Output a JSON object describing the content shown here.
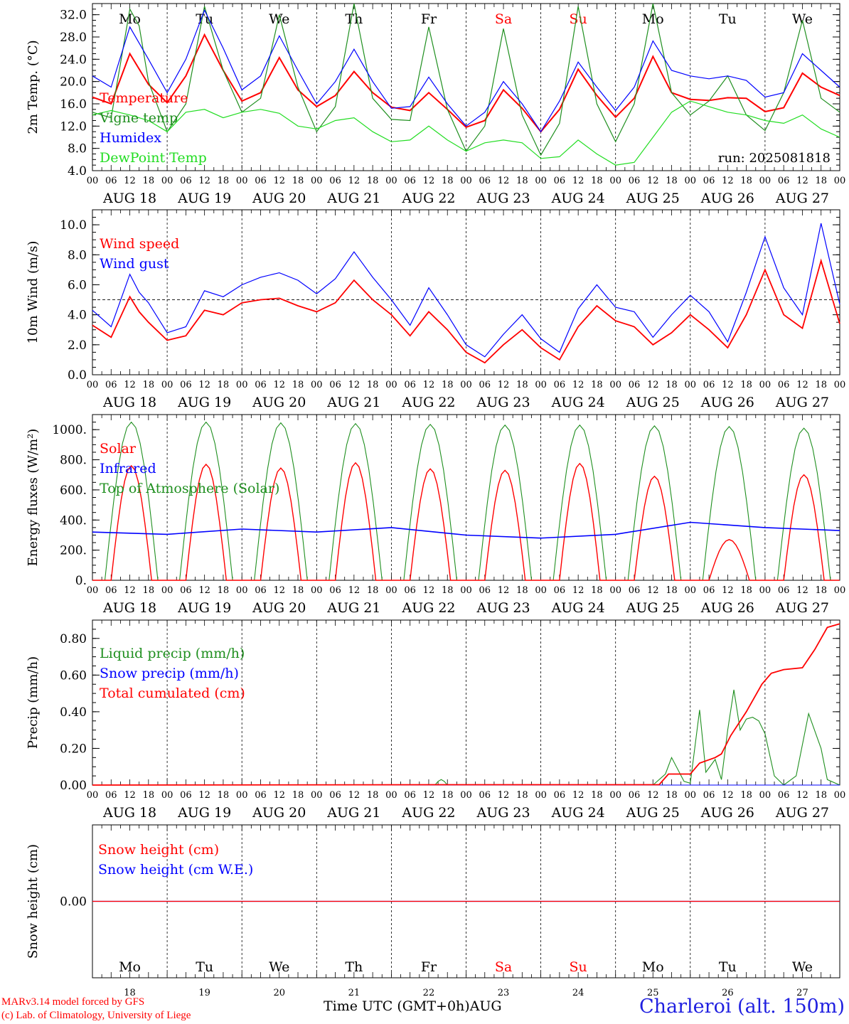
{
  "page": {
    "station": "Charleroi (alt. 150m)",
    "credits": [
      "MARv3.14 model forced by GFS",
      "(c) Lab. of Climatology, University of Liege"
    ],
    "x_axis_title": "Time UTC (GMT+0h)",
    "x_axis_month": "AUG",
    "run_label": "run: 2025081818"
  },
  "colors": {
    "red": "#ff0000",
    "green": "#1f8f1f",
    "blue": "#0000ff",
    "lightgreen": "#22dd22",
    "weekend": "#ff0000",
    "axis": "#000000"
  },
  "chart_data": [
    {
      "type": "line",
      "ylabel": "2m Temp. (°C)",
      "ylim": [
        4,
        34
      ],
      "yticks": [
        "32.0",
        "28.0",
        "24.0",
        "20.0",
        "16.0",
        "12.0",
        "8.0",
        "4.0"
      ],
      "x_unit": "hours since 2025-08-18 00 UTC",
      "days": [
        "AUG 18",
        "AUG 19",
        "AUG 20",
        "AUG 21",
        "AUG 22",
        "AUG 23",
        "AUG 24",
        "AUG 25",
        "AUG 26",
        "AUG 27"
      ],
      "weekdays": [
        "Mo",
        "Tu",
        "We",
        "Th",
        "Fr",
        "Sa",
        "Su",
        "Mo",
        "Tu",
        "We"
      ],
      "hour_ticks": [
        "00",
        "06",
        "12",
        "18"
      ],
      "series": [
        {
          "name": "Temperature",
          "color": "red",
          "x": [
            0,
            6,
            12,
            18,
            24,
            30,
            36,
            42,
            48,
            54,
            60,
            66,
            72,
            78,
            84,
            90,
            96,
            102,
            108,
            114,
            120,
            126,
            132,
            138,
            144,
            150,
            156,
            162,
            168,
            174,
            180,
            186,
            192,
            198,
            204,
            210,
            216,
            222,
            228,
            234,
            240
          ],
          "y": [
            17.2,
            16.0,
            25.0,
            19.5,
            16.2,
            21.0,
            28.4,
            22.0,
            16.5,
            18.0,
            24.3,
            18.5,
            15.5,
            17.5,
            21.8,
            18.0,
            15.4,
            14.8,
            18.0,
            15.0,
            11.8,
            13.0,
            18.5,
            15.2,
            11.0,
            15.0,
            22.2,
            17.5,
            13.6,
            17.0,
            24.5,
            18.0,
            16.8,
            16.6,
            17.1,
            17.0,
            14.6,
            15.3,
            21.5,
            19.0,
            17.5
          ]
        },
        {
          "name": "Vigne temp",
          "color": "green",
          "x": [
            0,
            6,
            12,
            15,
            18,
            24,
            30,
            36,
            42,
            48,
            54,
            60,
            66,
            72,
            78,
            84,
            90,
            96,
            102,
            108,
            114,
            120,
            126,
            132,
            138,
            144,
            150,
            156,
            162,
            168,
            174,
            180,
            186,
            192,
            198,
            204,
            210,
            216,
            222,
            228,
            234,
            240
          ],
          "y": [
            14.5,
            13.5,
            33.0,
            30.0,
            20.0,
            11.0,
            16.0,
            33.5,
            22.0,
            14.5,
            17.0,
            32.0,
            19.0,
            11.0,
            15.5,
            34.0,
            17.0,
            13.2,
            13.0,
            29.8,
            15.0,
            7.5,
            12.0,
            29.5,
            14.0,
            6.8,
            12.5,
            33.5,
            16.0,
            9.2,
            16.0,
            34.0,
            18.0,
            14.0,
            16.5,
            21.0,
            14.0,
            11.2,
            18.0,
            31.0,
            17.0,
            14.5
          ]
        },
        {
          "name": "Humidex",
          "color": "blue",
          "x": [
            0,
            6,
            12,
            18,
            24,
            30,
            36,
            42,
            48,
            54,
            60,
            66,
            72,
            78,
            84,
            90,
            96,
            102,
            108,
            114,
            120,
            126,
            132,
            138,
            144,
            150,
            156,
            162,
            168,
            174,
            180,
            186,
            192,
            198,
            204,
            210,
            216,
            222,
            228,
            234,
            240
          ],
          "y": [
            21.0,
            19.0,
            29.8,
            24.0,
            18.0,
            24.0,
            32.8,
            26.0,
            18.5,
            21.0,
            28.2,
            22.0,
            16.0,
            20.0,
            25.8,
            20.0,
            15.2,
            15.5,
            20.8,
            16.0,
            12.0,
            14.5,
            20.0,
            16.0,
            11.0,
            16.5,
            23.5,
            19.0,
            14.8,
            19.0,
            27.3,
            22.0,
            21.0,
            20.5,
            21.0,
            20.2,
            17.2,
            18.0,
            25.0,
            22.0,
            19.0
          ]
        },
        {
          "name": "DewPoint Temp",
          "color": "lightgreen",
          "x": [
            0,
            6,
            12,
            18,
            24,
            30,
            36,
            42,
            48,
            54,
            60,
            66,
            72,
            78,
            84,
            90,
            96,
            102,
            108,
            114,
            120,
            126,
            132,
            138,
            144,
            150,
            156,
            162,
            168,
            174,
            180,
            186,
            192,
            198,
            204,
            210,
            216,
            222,
            228,
            234,
            240
          ],
          "y": [
            14.0,
            14.8,
            14.0,
            13.0,
            11.0,
            14.5,
            15.0,
            13.5,
            14.5,
            15.0,
            14.3,
            12.0,
            11.5,
            13.0,
            13.5,
            11.0,
            9.2,
            9.5,
            12.0,
            9.5,
            7.5,
            9.0,
            9.5,
            9.0,
            6.2,
            6.5,
            9.5,
            7.0,
            5.0,
            5.5,
            10.0,
            14.5,
            16.5,
            15.5,
            14.5,
            14.0,
            13.0,
            12.5,
            14.0,
            11.5,
            10.0
          ]
        }
      ]
    },
    {
      "type": "line",
      "ylabel": "10m Wind (m/s)",
      "ylim": [
        0,
        11
      ],
      "yticks": [
        "10.0",
        "8.0",
        "6.0",
        "4.0",
        "2.0",
        "0.0"
      ],
      "reference_line": 5.0,
      "series": [
        {
          "name": "Wind speed",
          "color": "red",
          "x": [
            0,
            6,
            12,
            15,
            18,
            24,
            30,
            36,
            42,
            48,
            54,
            60,
            66,
            72,
            78,
            84,
            90,
            96,
            102,
            108,
            114,
            120,
            126,
            132,
            138,
            144,
            150,
            156,
            162,
            168,
            174,
            180,
            186,
            192,
            198,
            204,
            210,
            216,
            222,
            228,
            234,
            240
          ],
          "y": [
            3.3,
            2.5,
            5.2,
            4.2,
            3.5,
            2.3,
            2.6,
            4.3,
            4.0,
            4.8,
            5.0,
            5.1,
            4.6,
            4.2,
            4.8,
            6.3,
            5.0,
            4.0,
            2.6,
            4.2,
            3.0,
            1.5,
            0.8,
            2.0,
            3.0,
            1.8,
            1.0,
            3.2,
            4.6,
            3.6,
            3.2,
            2.0,
            2.8,
            4.0,
            3.0,
            1.8,
            4.0,
            7.0,
            4.0,
            3.1,
            7.6,
            3.4
          ]
        },
        {
          "name": "Wind gust",
          "color": "blue",
          "x": [
            0,
            6,
            12,
            15,
            18,
            24,
            30,
            36,
            42,
            48,
            54,
            60,
            66,
            72,
            78,
            84,
            90,
            96,
            102,
            108,
            114,
            120,
            126,
            132,
            138,
            144,
            150,
            156,
            162,
            168,
            174,
            180,
            186,
            192,
            198,
            204,
            210,
            216,
            222,
            228,
            234,
            240
          ],
          "y": [
            4.3,
            3.2,
            6.7,
            5.5,
            4.8,
            2.8,
            3.2,
            5.6,
            5.2,
            6.0,
            6.5,
            6.8,
            6.3,
            5.4,
            6.4,
            8.2,
            6.5,
            5.0,
            3.3,
            5.8,
            4.0,
            2.0,
            1.2,
            2.7,
            4.0,
            2.4,
            1.5,
            4.4,
            6.0,
            4.5,
            4.2,
            2.5,
            4.0,
            5.3,
            4.2,
            2.2,
            5.5,
            9.2,
            5.8,
            4.0,
            10.1,
            4.7
          ]
        }
      ]
    },
    {
      "type": "line",
      "ylabel": "Energy fluxes (W/m²)",
      "ylim": [
        0,
        1100
      ],
      "yticks": [
        "1000.",
        "800.",
        "600.",
        "400.",
        "200.",
        "0."
      ],
      "series": [
        {
          "name": "Solar",
          "color": "red",
          "daily_peaks": [
            760,
            770,
            745,
            780,
            740,
            730,
            775,
            690,
            270,
            700
          ]
        },
        {
          "name": "Infrared",
          "color": "blue",
          "x": [
            0,
            24,
            48,
            72,
            96,
            120,
            144,
            168,
            192,
            216,
            240
          ],
          "y": [
            320,
            305,
            340,
            320,
            350,
            300,
            280,
            305,
            385,
            350,
            330
          ]
        },
        {
          "name": "Top of Atmosphere (Solar)",
          "color": "green",
          "daily_peaks": [
            1050,
            1050,
            1045,
            1040,
            1035,
            1030,
            1030,
            1025,
            1020,
            1010
          ]
        }
      ]
    },
    {
      "type": "line",
      "ylabel": "Precip (mm/h)",
      "ylim": [
        0,
        0.9
      ],
      "yticks": [
        "0.80",
        "0.60",
        "0.40",
        "0.20",
        "0.00"
      ],
      "series": [
        {
          "name": "Liquid precip (mm/h)",
          "color": "green",
          "x": [
            0,
            110,
            111,
            112,
            113,
            114,
            180,
            184,
            186,
            190,
            192,
            195,
            197,
            200,
            202,
            204,
            206,
            208,
            210,
            212,
            214,
            216,
            219,
            222,
            226,
            230,
            234,
            236,
            240
          ],
          "y": [
            0,
            0,
            0.02,
            0.03,
            0.02,
            0,
            0,
            0.06,
            0.15,
            0.02,
            0.01,
            0.41,
            0.07,
            0.14,
            0.03,
            0.3,
            0.52,
            0.3,
            0.36,
            0.37,
            0.35,
            0.28,
            0.05,
            0.0,
            0.05,
            0.39,
            0.2,
            0.03,
            0
          ]
        },
        {
          "name": "Snow precip (mm/h)",
          "color": "blue",
          "x": [
            0,
            240
          ],
          "y": [
            0,
            0
          ]
        },
        {
          "name": "Total cumulated (cm)",
          "color": "red",
          "x": [
            0,
            110,
            182,
            185,
            192,
            195,
            200,
            202,
            205,
            210,
            215,
            218,
            222,
            228,
            232,
            236,
            240
          ],
          "y": [
            0,
            0.002,
            0.002,
            0.06,
            0.06,
            0.12,
            0.15,
            0.17,
            0.27,
            0.4,
            0.55,
            0.61,
            0.63,
            0.64,
            0.74,
            0.86,
            0.88
          ]
        }
      ]
    },
    {
      "type": "line",
      "ylabel": "Snow height (cm)",
      "ylim": [
        -1,
        1
      ],
      "yticks": [
        "0.00"
      ],
      "series": [
        {
          "name": "Snow height (cm)",
          "color": "red",
          "x": [
            0,
            240
          ],
          "y": [
            0,
            0
          ]
        },
        {
          "name": "Snow height (cm W.E.)",
          "color": "blue",
          "x": [
            0,
            240
          ],
          "y": [
            0,
            0
          ]
        }
      ],
      "bottom_days": [
        "18",
        "19",
        "20",
        "21",
        "22",
        "23",
        "24",
        "25",
        "26",
        "27"
      ]
    }
  ]
}
